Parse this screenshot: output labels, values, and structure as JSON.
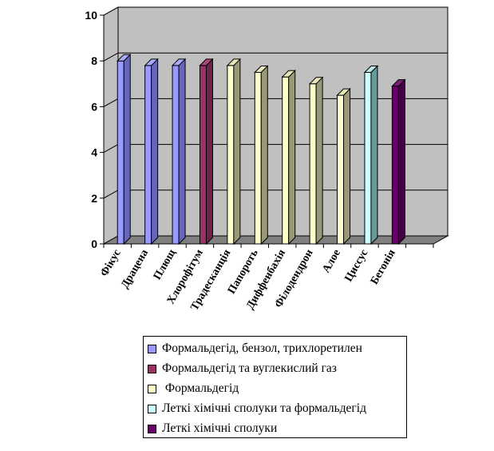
{
  "chart_data": {
    "type": "bar",
    "style": "3d-column",
    "categories": [
      "Фікус",
      "Драцена",
      "Плющ",
      "Хлорофітум",
      "Традесканція",
      "Папороть",
      "Диффенбахія",
      "Філодендрон",
      "Алое",
      "Циссус",
      "Бегонія"
    ],
    "values": [
      8,
      7.8,
      7.8,
      7.8,
      7.8,
      7.5,
      7.3,
      7.0,
      6.5,
      7.5,
      6.9
    ],
    "series_index": [
      0,
      0,
      0,
      1,
      2,
      2,
      2,
      2,
      2,
      3,
      4
    ],
    "ylim": [
      0,
      10
    ],
    "yticks": [
      "0",
      "2",
      "4",
      "6",
      "8",
      "10"
    ],
    "grid": true,
    "legend_position": "bottom",
    "series": [
      {
        "name": "Формальдегід, бензол, трихлоретилен",
        "color": "#9999ff",
        "side_color": "#6666bb",
        "top_color": "#aaaaff"
      },
      {
        "name": "Формальдегід та вуглекислий газ",
        "color": "#993366",
        "side_color": "#6b2447",
        "top_color": "#a84878"
      },
      {
        "name": " Формальдегід",
        "color": "#ffffcc",
        "side_color": "#999977",
        "top_color": "#e6e6b8"
      },
      {
        "name": "Леткі хімічні сполуки та формальдегід",
        "color": "#ccffff",
        "side_color": "#669999",
        "top_color": "#b8e6e6"
      },
      {
        "name": "Леткі хімічні сполуки",
        "color": "#660066",
        "side_color": "#440044",
        "top_color": "#7a1f7a"
      }
    ],
    "wall_color": "#c0c0c0",
    "floor_color": "#808080"
  }
}
